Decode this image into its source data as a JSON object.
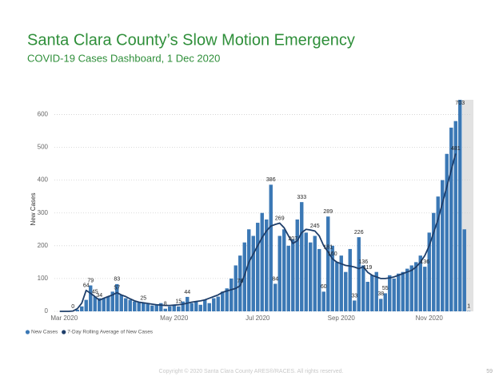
{
  "title": "Santa Clara County’s Slow Motion Emergency",
  "subtitle": "COVID-19 Cases Dashboard, 1 Dec 2020",
  "footer": "Copyright © 2020 Santa Clara County ARES®/RACES.  All rights reserved.",
  "page_number": "59",
  "chart_data": {
    "type": "bar",
    "y_label": "New Cases",
    "ylim": [
      0,
      640
    ],
    "yticks": [
      0,
      100,
      200,
      300,
      400,
      500,
      600
    ],
    "grid": true,
    "categories": [
      null,
      "Mar 2020",
      null,
      null,
      null,
      null,
      null,
      null,
      null,
      null,
      null,
      null,
      null,
      null,
      null,
      null,
      null,
      null,
      null,
      null,
      null,
      null,
      null,
      null,
      null,
      null,
      "May 2020",
      null,
      null,
      null,
      null,
      null,
      null,
      null,
      null,
      null,
      null,
      null,
      null,
      null,
      null,
      null,
      null,
      null,
      null,
      "Jul 2020",
      null,
      null,
      null,
      null,
      null,
      null,
      null,
      null,
      null,
      null,
      null,
      null,
      null,
      null,
      null,
      null,
      null,
      null,
      "Sep 2020",
      null,
      null,
      null,
      null,
      null,
      null,
      null,
      null,
      null,
      null,
      null,
      null,
      null,
      null,
      null,
      null,
      null,
      null,
      null,
      "Nov 2020",
      null,
      null,
      null,
      null,
      null,
      null,
      null,
      null,
      null
    ],
    "series": [
      {
        "name": "New Cases",
        "type": "bar",
        "color": "#3b78b5",
        "values": [
          0,
          0,
          0,
          0,
          5,
          15,
          35,
          79,
          45,
          40,
          40,
          45,
          60,
          83,
          50,
          40,
          35,
          30,
          28,
          25,
          22,
          18,
          20,
          25,
          8,
          15,
          20,
          15,
          30,
          44,
          25,
          30,
          20,
          35,
          25,
          40,
          45,
          60,
          70,
          100,
          140,
          170,
          210,
          250,
          230,
          270,
          300,
          280,
          386,
          84,
          230,
          250,
          200,
          220,
          280,
          333,
          240,
          210,
          230,
          190,
          60,
          289,
          200,
          150,
          170,
          120,
          190,
          33,
          226,
          140,
          90,
          110,
          120,
          38,
          55,
          110,
          100,
          115,
          120,
          130,
          140,
          150,
          170,
          136,
          240,
          300,
          350,
          400,
          480,
          560,
          580,
          703,
          250,
          1
        ],
        "value_labels": [
          null,
          null,
          null,
          "0",
          null,
          null,
          null,
          "79",
          "45",
          null,
          null,
          null,
          null,
          "83",
          null,
          null,
          null,
          null,
          null,
          "25",
          null,
          null,
          null,
          null,
          "8",
          null,
          null,
          "15",
          null,
          "44",
          null,
          null,
          null,
          null,
          null,
          null,
          null,
          null,
          null,
          null,
          null,
          null,
          null,
          null,
          null,
          null,
          null,
          null,
          "386",
          "84",
          null,
          null,
          null,
          null,
          null,
          "333",
          null,
          null,
          null,
          null,
          "60",
          "289",
          null,
          null,
          null,
          null,
          null,
          "33",
          "226",
          null,
          null,
          null,
          null,
          "38",
          "55",
          null,
          null,
          null,
          null,
          null,
          null,
          null,
          null,
          "136",
          null,
          null,
          null,
          null,
          null,
          null,
          null,
          "703",
          null,
          "1"
        ]
      },
      {
        "name": "7-Day Rolling Average of New Cases",
        "type": "line",
        "color": "#1e3e6a",
        "values": [
          0,
          0,
          0,
          1,
          8,
          25,
          64,
          55,
          45,
          34,
          40,
          45,
          50,
          57,
          50,
          45,
          38,
          32,
          28,
          26,
          24,
          22,
          20,
          19,
          18,
          18,
          19,
          20,
          22,
          25,
          28,
          30,
          32,
          35,
          40,
          45,
          50,
          58,
          62,
          66,
          70,
          78,
          110,
          150,
          175,
          200,
          225,
          245,
          260,
          265,
          269,
          255,
          230,
          207,
          215,
          240,
          250,
          248,
          245,
          230,
          200,
          181,
          160,
          150,
          145,
          140,
          138,
          135,
          130,
          136,
          119,
          110,
          105,
          100,
          100,
          102,
          105,
          110,
          115,
          120,
          125,
          135,
          150,
          170,
          200,
          240,
          280,
          330,
          380,
          430,
          481,
          null,
          null,
          null
        ],
        "value_labels": [
          null,
          null,
          null,
          null,
          null,
          null,
          "64",
          null,
          null,
          "34",
          null,
          null,
          null,
          "57",
          null,
          null,
          null,
          null,
          null,
          null,
          null,
          null,
          null,
          null,
          null,
          null,
          null,
          null,
          null,
          null,
          null,
          null,
          null,
          null,
          null,
          null,
          null,
          null,
          null,
          null,
          null,
          "78",
          null,
          null,
          null,
          null,
          null,
          null,
          null,
          null,
          "269",
          null,
          null,
          "207",
          null,
          null,
          null,
          null,
          "245",
          null,
          null,
          "181",
          "160",
          null,
          null,
          null,
          null,
          null,
          null,
          "136",
          "119",
          null,
          null,
          null,
          null,
          null,
          null,
          null,
          null,
          null,
          null,
          null,
          null,
          null,
          null,
          null,
          null,
          null,
          null,
          null,
          "481",
          null,
          null,
          null
        ]
      }
    ]
  }
}
